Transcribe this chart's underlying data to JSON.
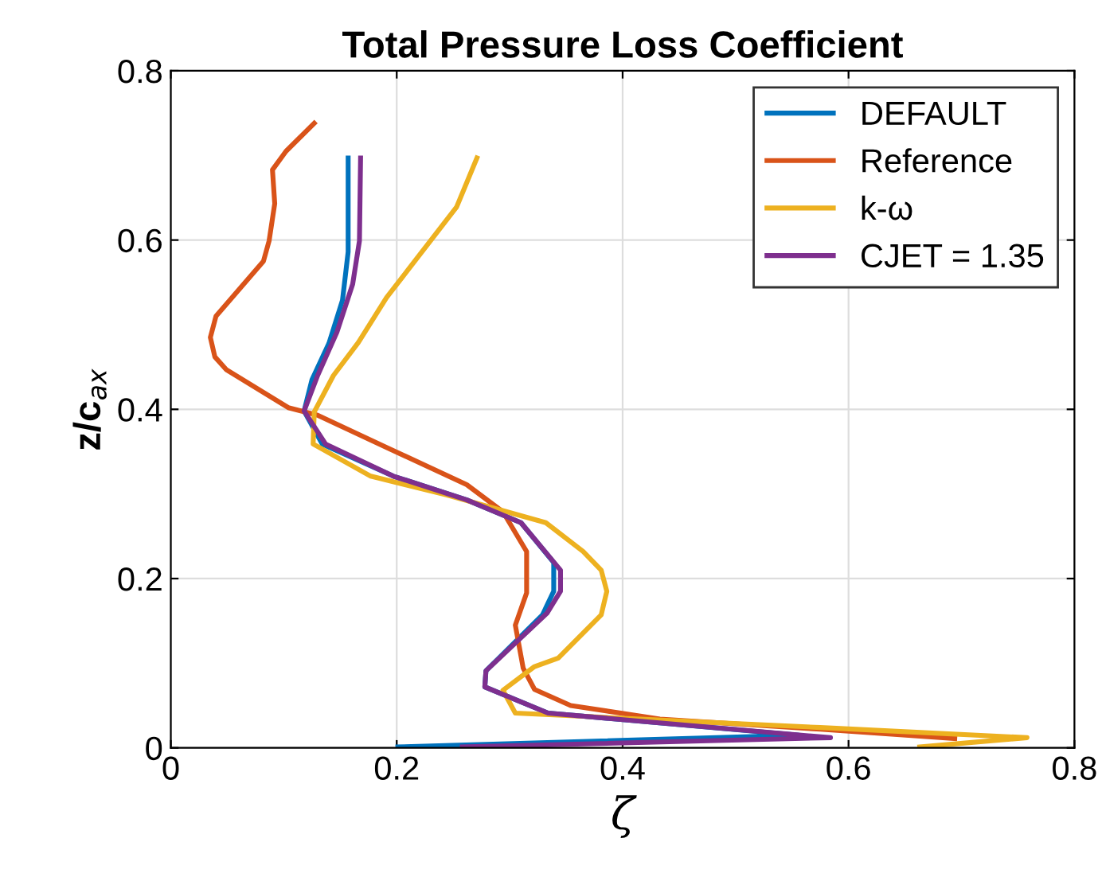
{
  "chart_data": {
    "type": "line",
    "title": "Total Pressure Loss Coefficient",
    "xlabel": "ζ",
    "ylabel": "z/c$_{ax}$",
    "xlim": [
      0,
      0.8
    ],
    "ylim": [
      0,
      0.8
    ],
    "xticks": [
      0,
      0.2,
      0.4,
      0.6,
      0.8
    ],
    "yticks": [
      0,
      0.2,
      0.4,
      0.6,
      0.8
    ],
    "grid": true,
    "legend": "top right",
    "marker": "none",
    "line_style": "solid",
    "series": [
      {
        "name": "DEFAULT",
        "color": "#0072bd",
        "x": [
          0.157,
          0.157,
          0.152,
          0.14,
          0.125,
          0.118,
          0.134,
          0.197,
          0.262,
          0.31,
          0.339,
          0.339,
          0.329,
          0.279,
          0.278,
          0.334,
          0.556,
          0.201
        ],
        "values": [
          0.697,
          0.586,
          0.529,
          0.478,
          0.435,
          0.398,
          0.359,
          0.321,
          0.293,
          0.266,
          0.219,
          0.185,
          0.157,
          0.091,
          0.072,
          0.041,
          0.015,
          0.001
        ]
      },
      {
        "name": "Reference",
        "color": "#d95319",
        "x": [
          0.127,
          0.102,
          0.09,
          0.092,
          0.087,
          0.082,
          0.04,
          0.035,
          0.039,
          0.049,
          0.104,
          0.13,
          0.191,
          0.262,
          0.294,
          0.315,
          0.315,
          0.305,
          0.312,
          0.322,
          0.354,
          0.433,
          0.575,
          0.694
        ],
        "values": [
          0.738,
          0.705,
          0.683,
          0.643,
          0.599,
          0.575,
          0.51,
          0.485,
          0.462,
          0.447,
          0.402,
          0.393,
          0.355,
          0.311,
          0.279,
          0.232,
          0.183,
          0.145,
          0.094,
          0.069,
          0.05,
          0.034,
          0.022,
          0.011
        ]
      },
      {
        "name": "k-ω",
        "color": "#edb120",
        "x": [
          0.271,
          0.253,
          0.191,
          0.166,
          0.144,
          0.127,
          0.126,
          0.177,
          0.244,
          0.332,
          0.365,
          0.381,
          0.386,
          0.381,
          0.343,
          0.322,
          0.294,
          0.305,
          0.575,
          0.758,
          0.663
        ],
        "values": [
          0.697,
          0.639,
          0.532,
          0.479,
          0.44,
          0.397,
          0.359,
          0.321,
          0.299,
          0.266,
          0.232,
          0.21,
          0.185,
          0.157,
          0.106,
          0.096,
          0.068,
          0.041,
          0.024,
          0.012,
          0.001
        ]
      },
      {
        "name": "CJET = 1.35",
        "color": "#7e2f8e",
        "x": [
          0.168,
          0.167,
          0.161,
          0.147,
          0.13,
          0.118,
          0.137,
          0.197,
          0.262,
          0.31,
          0.345,
          0.345,
          0.333,
          0.279,
          0.278,
          0.334,
          0.584,
          0.258
        ],
        "values": [
          0.697,
          0.599,
          0.548,
          0.491,
          0.44,
          0.398,
          0.359,
          0.321,
          0.293,
          0.266,
          0.21,
          0.185,
          0.159,
          0.091,
          0.072,
          0.041,
          0.012,
          0.001
        ]
      }
    ]
  }
}
